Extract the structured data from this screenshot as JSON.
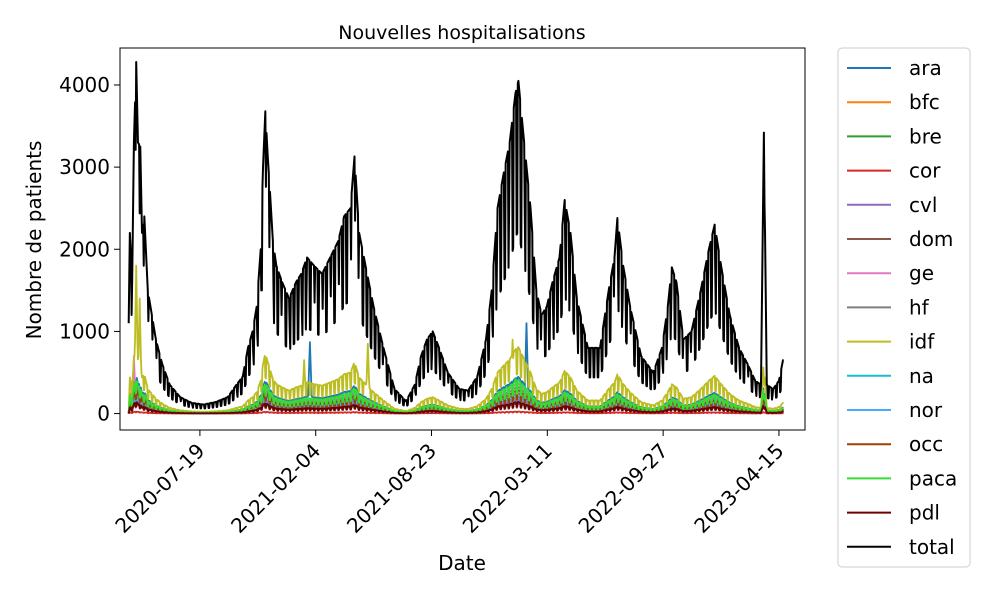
{
  "chart_data": {
    "type": "line",
    "title": "Nouvelles hospitalisations",
    "xlabel": "Date",
    "ylabel": "Nombre de patients",
    "x_ticks": [
      "2020-07-19",
      "2021-02-04",
      "2021-08-23",
      "2022-03-11",
      "2022-09-27",
      "2023-04-15"
    ],
    "y_ticks": [
      0,
      1000,
      2000,
      3000,
      4000
    ],
    "xlim": [
      "2020-03-03",
      "2023-05-30"
    ],
    "ylim": [
      -200,
      4450
    ],
    "grid": false,
    "legend_position": "outside-right",
    "series": [
      {
        "name": "ara",
        "color": "#1f77b4",
        "scale": 0.11,
        "points": [
          [
            "2022-02-03",
            1100
          ],
          [
            "2021-01-25",
            870
          ]
        ]
      },
      {
        "name": "bfc",
        "color": "#ff7f0e",
        "scale": 0.045,
        "points": []
      },
      {
        "name": "bre",
        "color": "#2ca02c",
        "scale": 0.035,
        "points": []
      },
      {
        "name": "cor",
        "color": "#d62728",
        "scale": 0.006,
        "points": []
      },
      {
        "name": "cvl",
        "color": "#9467bd",
        "scale": 0.04,
        "points": []
      },
      {
        "name": "dom",
        "color": "#8c564b",
        "scale": 0.03,
        "points": []
      },
      {
        "name": "ge",
        "color": "#e377c2",
        "scale": 0.09,
        "points": [
          [
            "2020-03-27",
            700
          ]
        ]
      },
      {
        "name": "hf",
        "color": "#7f7f7f",
        "scale": 0.08,
        "points": []
      },
      {
        "name": "idf",
        "color": "#bcbd22",
        "scale": 0.2,
        "points": [
          [
            "2020-03-31",
            1800
          ],
          [
            "2020-04-06",
            1400
          ],
          [
            "2021-01-15",
            650
          ],
          [
            "2021-05-05",
            850
          ],
          [
            "2022-01-10",
            900
          ]
        ]
      },
      {
        "name": "na",
        "color": "#17becf",
        "scale": 0.06,
        "points": []
      },
      {
        "name": "nor",
        "color": "#4aa8ff",
        "scale": 0.05,
        "points": []
      },
      {
        "name": "occ",
        "color": "#a04000",
        "scale": 0.07,
        "points": []
      },
      {
        "name": "paca",
        "color": "#33dd33",
        "scale": 0.1,
        "points": [
          [
            "2022-01-15",
            420
          ]
        ]
      },
      {
        "name": "pdl",
        "color": "#6b0000",
        "scale": 0.035,
        "points": []
      },
      {
        "name": "total",
        "color": "#000000",
        "scale": 1.0,
        "points": [
          [
            "2020-03-18",
            0
          ],
          [
            "2020-03-20",
            2200
          ],
          [
            "2020-03-24",
            1600
          ],
          [
            "2020-03-27",
            3300
          ],
          [
            "2020-03-31",
            4280
          ],
          [
            "2020-04-03",
            3300
          ],
          [
            "2020-04-07",
            3250
          ],
          [
            "2020-04-10",
            2200
          ],
          [
            "2020-04-14",
            2400
          ],
          [
            "2020-04-20",
            1500
          ],
          [
            "2020-04-27",
            1200
          ],
          [
            "2020-05-04",
            900
          ],
          [
            "2020-05-15",
            600
          ],
          [
            "2020-05-28",
            350
          ],
          [
            "2020-06-15",
            200
          ],
          [
            "2020-07-05",
            130
          ],
          [
            "2020-07-25",
            110
          ],
          [
            "2020-08-15",
            140
          ],
          [
            "2020-09-05",
            200
          ],
          [
            "2020-09-20",
            350
          ],
          [
            "2020-10-01",
            450
          ],
          [
            "2020-10-10",
            800
          ],
          [
            "2020-10-18",
            1000
          ],
          [
            "2020-10-25",
            1300
          ],
          [
            "2020-11-01",
            2000
          ],
          [
            "2020-11-05",
            3000
          ],
          [
            "2020-11-09",
            3680
          ],
          [
            "2020-11-13",
            3150
          ],
          [
            "2020-11-17",
            2700
          ],
          [
            "2020-11-22",
            2100
          ],
          [
            "2020-11-28",
            1800
          ],
          [
            "2020-12-08",
            1600
          ],
          [
            "2020-12-20",
            1400
          ],
          [
            "2021-01-01",
            1600
          ],
          [
            "2021-01-10",
            1700
          ],
          [
            "2021-01-20",
            1900
          ],
          [
            "2021-02-01",
            1800
          ],
          [
            "2021-02-15",
            1700
          ],
          [
            "2021-03-01",
            1900
          ],
          [
            "2021-03-15",
            2100
          ],
          [
            "2021-03-25",
            2400
          ],
          [
            "2021-04-05",
            2500
          ],
          [
            "2021-04-12",
            3130
          ],
          [
            "2021-04-20",
            2200
          ],
          [
            "2021-05-01",
            1800
          ],
          [
            "2021-05-15",
            1300
          ],
          [
            "2021-06-01",
            800
          ],
          [
            "2021-06-20",
            300
          ],
          [
            "2021-07-10",
            150
          ],
          [
            "2021-07-25",
            350
          ],
          [
            "2021-08-05",
            700
          ],
          [
            "2021-08-15",
            900
          ],
          [
            "2021-08-25",
            1000
          ],
          [
            "2021-09-05",
            800
          ],
          [
            "2021-09-20",
            500
          ],
          [
            "2021-10-10",
            300
          ],
          [
            "2021-10-25",
            280
          ],
          [
            "2021-11-10",
            450
          ],
          [
            "2021-11-25",
            900
          ],
          [
            "2021-12-05",
            1500
          ],
          [
            "2021-12-15",
            2500
          ],
          [
            "2021-12-25",
            2900
          ],
          [
            "2022-01-05",
            3300
          ],
          [
            "2022-01-15",
            3900
          ],
          [
            "2022-01-20",
            4050
          ],
          [
            "2022-01-30",
            3300
          ],
          [
            "2022-02-10",
            2500
          ],
          [
            "2022-02-20",
            1500
          ],
          [
            "2022-03-01",
            1200
          ],
          [
            "2022-03-10",
            1300
          ],
          [
            "2022-03-20",
            1600
          ],
          [
            "2022-04-01",
            1900
          ],
          [
            "2022-04-10",
            2600
          ],
          [
            "2022-04-20",
            2200
          ],
          [
            "2022-05-01",
            1400
          ],
          [
            "2022-05-20",
            800
          ],
          [
            "2022-06-10",
            800
          ],
          [
            "2022-06-25",
            1500
          ],
          [
            "2022-07-05",
            1900
          ],
          [
            "2022-07-10",
            2380
          ],
          [
            "2022-07-20",
            1800
          ],
          [
            "2022-08-01",
            1300
          ],
          [
            "2022-08-20",
            700
          ],
          [
            "2022-09-10",
            500
          ],
          [
            "2022-09-25",
            800
          ],
          [
            "2022-10-05",
            1300
          ],
          [
            "2022-10-12",
            1780
          ],
          [
            "2022-10-20",
            1600
          ],
          [
            "2022-11-01",
            900
          ],
          [
            "2022-11-15",
            1000
          ],
          [
            "2022-12-01",
            1500
          ],
          [
            "2022-12-15",
            2000
          ],
          [
            "2022-12-25",
            2300
          ],
          [
            "2023-01-05",
            1800
          ],
          [
            "2023-01-20",
            1200
          ],
          [
            "2023-02-05",
            800
          ],
          [
            "2023-02-20",
            600
          ],
          [
            "2023-03-05",
            400
          ],
          [
            "2023-03-15",
            350
          ],
          [
            "2023-03-20",
            3420
          ],
          [
            "2023-03-25",
            350
          ],
          [
            "2023-04-05",
            300
          ],
          [
            "2023-04-15",
            400
          ],
          [
            "2023-04-22",
            650
          ]
        ]
      }
    ]
  }
}
